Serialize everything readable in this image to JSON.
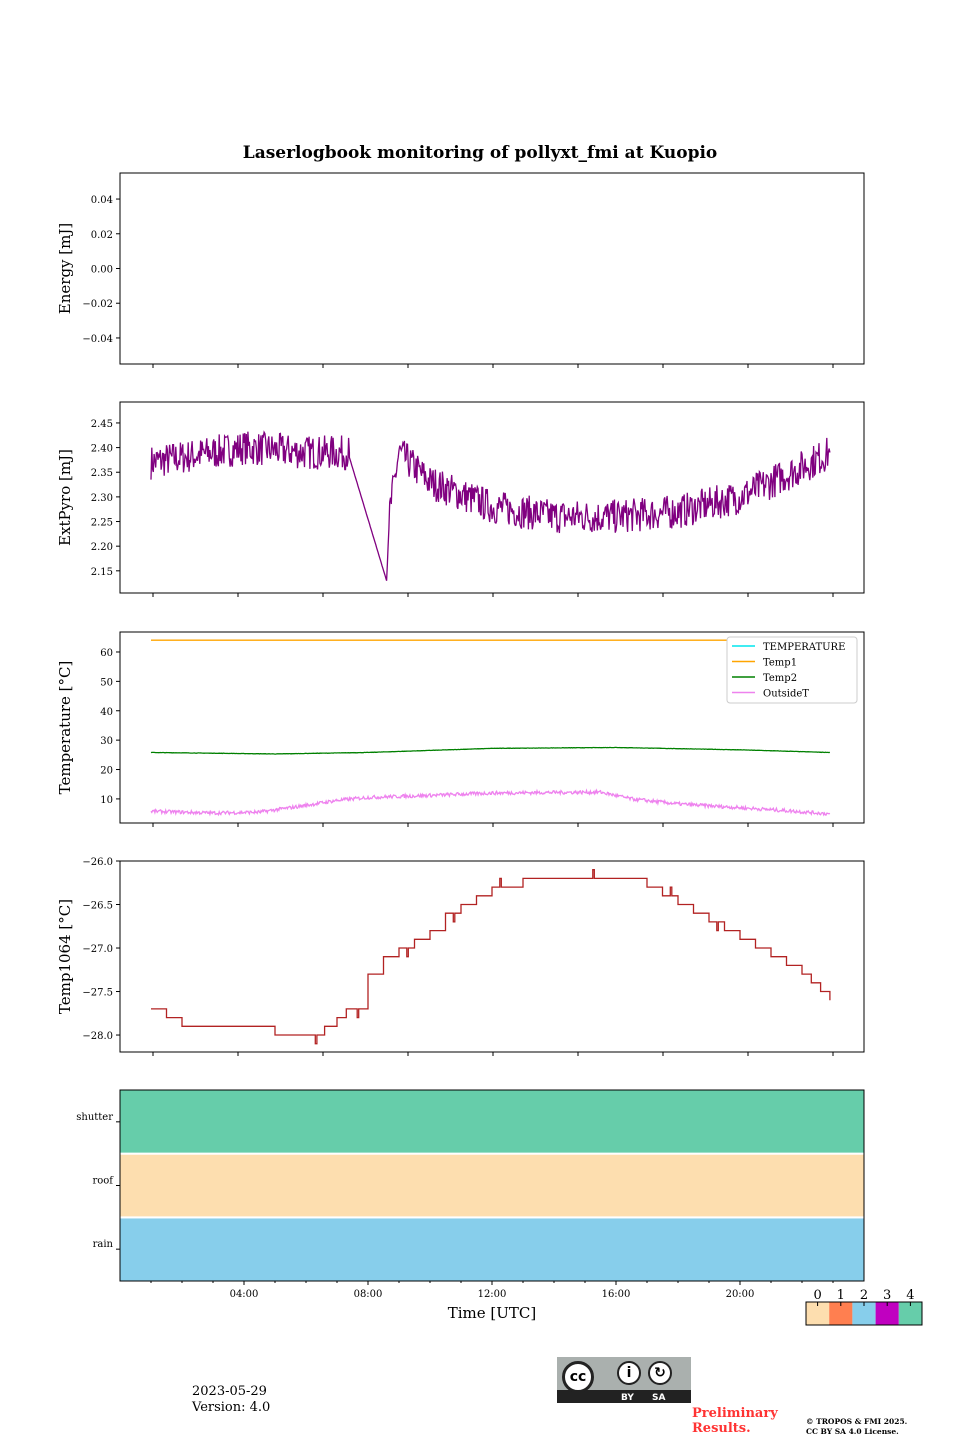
{
  "title": "Laserlogbook monitoring of pollyxt_fmi at Kuopio",
  "footer": {
    "date": "2023-05-29",
    "version": "Version: 4.0",
    "preliminary": "Preliminary Results.",
    "copyright": "© TROPOS & FMI 2025.",
    "license": "CC BY SA 4.0 License.",
    "cc_by": "BY",
    "cc_sa": "SA",
    "cc": "cc"
  },
  "chart_data": [
    {
      "type": "line",
      "ylabel": "Energy [mJ]",
      "ylim": [
        -0.055,
        0.055
      ],
      "yticks": [
        0.04,
        0.02,
        0.0,
        -0.02,
        -0.04
      ],
      "ytick_labels": [
        "0.04",
        "0.02",
        "0.00",
        "−0.02",
        "−0.04"
      ],
      "series": []
    },
    {
      "type": "line",
      "ylabel": "ExtPyro [mJ]",
      "ylim": [
        2.105,
        2.4925
      ],
      "yticks": [
        2.45,
        2.4,
        2.35,
        2.3,
        2.25,
        2.2,
        2.15
      ],
      "ytick_labels": [
        "2.45",
        "2.40",
        "2.35",
        "2.30",
        "2.25",
        "2.20",
        "2.15"
      ],
      "series": [
        {
          "name": "ExtPyro",
          "color": "#800080",
          "noise": 0.035,
          "x": [
            1,
            2,
            4,
            6,
            7.4,
            7.4,
            8.6,
            8.7,
            9.0,
            10,
            12,
            14,
            16,
            18,
            20,
            22,
            22.9
          ],
          "y": [
            2.37,
            2.38,
            2.4,
            2.39,
            2.39,
            2.38,
            2.13,
            2.27,
            2.39,
            2.33,
            2.28,
            2.26,
            2.26,
            2.27,
            2.3,
            2.36,
            2.39
          ]
        }
      ]
    },
    {
      "type": "line",
      "ylabel": "Temperature [°C]",
      "ylim": [
        1.8,
        66.8
      ],
      "yticks": [
        10,
        20,
        30,
        40,
        50,
        60
      ],
      "ytick_labels": [
        "10",
        "20",
        "30",
        "40",
        "50",
        "60"
      ],
      "legend_position": "top-right",
      "series": [
        {
          "name": "TEMPERATURE",
          "color": "#00e5ee",
          "noise": 0,
          "x": [],
          "y": []
        },
        {
          "name": "Temp1",
          "color": "#ffa500",
          "noise": 0,
          "x": [
            1,
            22.9
          ],
          "y": [
            64,
            64
          ]
        },
        {
          "name": "Temp2",
          "color": "#008000",
          "noise": 0.05,
          "x": [
            1,
            5,
            8,
            12,
            16,
            20,
            22.9
          ],
          "y": [
            25.8,
            25.3,
            25.8,
            27.2,
            27.5,
            26.7,
            25.8
          ]
        },
        {
          "name": "OutsideT",
          "color": "#ee82ee",
          "noise": 0.6,
          "x": [
            1,
            3,
            4.5,
            6,
            7,
            8,
            10,
            12,
            14,
            15.5,
            16.5,
            18,
            20,
            21.5,
            22.9
          ],
          "y": [
            5.8,
            5.2,
            5.5,
            7.8,
            9.5,
            10.5,
            11.2,
            12,
            12.2,
            12.3,
            10,
            8.3,
            7,
            6,
            4.9
          ]
        }
      ]
    },
    {
      "type": "line",
      "ylabel": "Temp1064 [°C]",
      "ylim": [
        -28.195,
        -26.0
      ],
      "yticks": [
        -26.0,
        -26.5,
        -27.0,
        -27.5,
        -28.0
      ],
      "ytick_labels": [
        "−26.0",
        "−26.5",
        "−27.0",
        "−27.5",
        "−28.0"
      ],
      "series": [
        {
          "name": "Temp1064",
          "color": "#b22222",
          "step": true,
          "x": [
            1,
            1.5,
            2,
            3,
            5,
            5.5,
            6,
            6.6,
            7,
            7.3,
            8,
            8.5,
            9,
            9.5,
            10,
            10.5,
            11,
            11.5,
            12,
            12.5,
            13,
            14,
            16.5,
            17,
            17.5,
            18,
            18.5,
            19,
            19.5,
            20,
            20.5,
            21,
            21.5,
            22,
            22.3,
            22.6,
            22.9
          ],
          "y": [
            -27.7,
            -27.8,
            -27.9,
            -27.9,
            -28.0,
            -28.0,
            -28.0,
            -27.9,
            -27.8,
            -27.7,
            -27.3,
            -27.1,
            -27.0,
            -26.9,
            -26.8,
            -26.6,
            -26.5,
            -26.4,
            -26.3,
            -26.3,
            -26.2,
            -26.2,
            -26.2,
            -26.3,
            -26.4,
            -26.5,
            -26.6,
            -26.7,
            -26.8,
            -26.9,
            -27.0,
            -27.1,
            -27.2,
            -27.3,
            -27.4,
            -27.5,
            -27.6
          ]
        }
      ]
    },
    {
      "type": "heatmap",
      "xlabel": "Time [UTC]",
      "xlim": [
        0,
        24
      ],
      "xticks": [
        4,
        8,
        12,
        16,
        20
      ],
      "xtick_labels": [
        "04:00",
        "08:00",
        "12:00",
        "16:00",
        "20:00"
      ],
      "rows": [
        {
          "name": "shutter",
          "value": 4
        },
        {
          "name": "roof",
          "value": 0
        },
        {
          "name": "rain",
          "value": 2
        }
      ],
      "colorbar": {
        "ticks": [
          "0",
          "1",
          "2",
          "3",
          "4"
        ],
        "colors": [
          "#fddeaf",
          "#ff7f50",
          "#87ceeb",
          "#c000c0",
          "#66cdaa"
        ]
      }
    }
  ]
}
